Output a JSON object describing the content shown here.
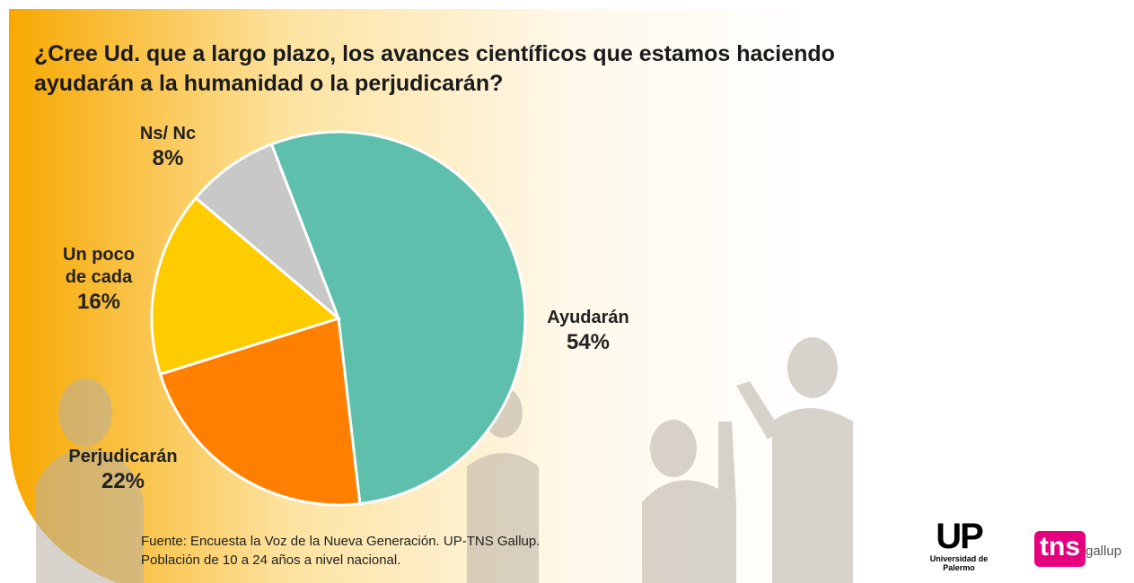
{
  "chart_data": {
    "type": "pie",
    "title": "¿Cree Ud. que a largo plazo, los avances científicos que estamos haciendo ayudarán a la humanidad o la perjudicarán?",
    "categories": [
      "Ayudarán",
      "Perjudicarán",
      "Un poco de cada",
      "Ns/ Nc"
    ],
    "values": [
      54,
      22,
      16,
      8
    ],
    "value_labels": [
      "54%",
      "22%",
      "16%",
      "8%"
    ],
    "colors": [
      "#5fbfad",
      "#ff8000",
      "#ffcc00",
      "#c8c8c8"
    ],
    "source": [
      "Fuente: Encuesta la Voz de la Nueva Generación. UP-TNS Gallup.",
      "Población de 10 a 24 años a nivel nacional."
    ]
  },
  "logos": {
    "up": "UP",
    "up_sub": "Universidad de Palermo",
    "tns": "tns",
    "gallup": "gallup"
  }
}
